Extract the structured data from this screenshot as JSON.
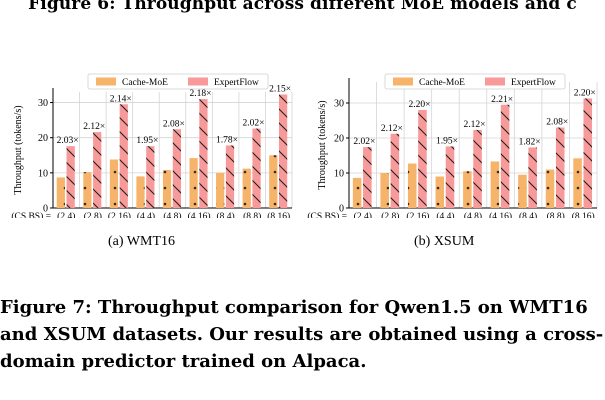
{
  "top_caption": "Figure 6: Throughput across different MoE models and c",
  "chart_data": [
    {
      "type": "bar",
      "subcaption": "(a)  WMT16",
      "ylabel": "Throughput (tokens/s)",
      "xaxis_prefix": "(CS,BS) =",
      "categories": [
        "(2,4)",
        "(2,8)",
        "(2,16)",
        "(4,4)",
        "(4,8)",
        "(4,16)",
        "(8,4)",
        "(8,8)",
        "(8,16)"
      ],
      "ylim": [
        0,
        33
      ],
      "yticks": [
        "0",
        "10",
        "20",
        "30"
      ],
      "grid": true,
      "legend_position": "top",
      "series": [
        {
          "name": "Cache-MoE",
          "color": "#f6b46b",
          "values": [
            8.7,
            10.2,
            13.8,
            9.0,
            10.8,
            14.2,
            10.0,
            11.2,
            15.0
          ]
        },
        {
          "name": "ExpertFlow",
          "color": "#f99a9a",
          "values": [
            17.6,
            21.6,
            29.5,
            17.6,
            22.4,
            31.0,
            17.8,
            22.6,
            32.3
          ]
        }
      ],
      "annotations": [
        "2.03×",
        "2.12×",
        "2.14×",
        "1.95×",
        "2.08×",
        "2.18×",
        "1.78×",
        "2.02×",
        "2.15×"
      ]
    },
    {
      "type": "bar",
      "subcaption": "(b)  XSUM",
      "ylabel": "Throughput (tokens/s)",
      "xaxis_prefix": "(CS,BS) =",
      "categories": [
        "(2,4)",
        "(2,8)",
        "(2,16)",
        "(4,4)",
        "(4,8)",
        "(4,16)",
        "(8,4)",
        "(8,8)",
        "(8,16)"
      ],
      "ylim": [
        0,
        36
      ],
      "yticks": [
        "0",
        "10",
        "20",
        "30"
      ],
      "grid": true,
      "legend_position": "top",
      "series": [
        {
          "name": "Cache-MoE",
          "color": "#f6b46b",
          "values": [
            8.6,
            10.0,
            12.7,
            9.0,
            10.5,
            13.3,
            9.5,
            11.0,
            14.2
          ]
        },
        {
          "name": "ExpertFlow",
          "color": "#f99a9a",
          "values": [
            17.4,
            21.2,
            28.0,
            17.6,
            22.3,
            29.5,
            17.3,
            23.0,
            31.3
          ]
        }
      ],
      "annotations": [
        "2.02×",
        "2.12×",
        "2.20×",
        "1.95×",
        "2.12×",
        "2.21×",
        "1.82×",
        "2.08×",
        "2.20×"
      ]
    }
  ],
  "main_caption": [
    "Figure 7: Throughput comparison for Qwen1.5 on WMT16",
    "and XSUM datasets. Our results are obtained using a cross-",
    "domain predictor trained on Alpaca."
  ]
}
